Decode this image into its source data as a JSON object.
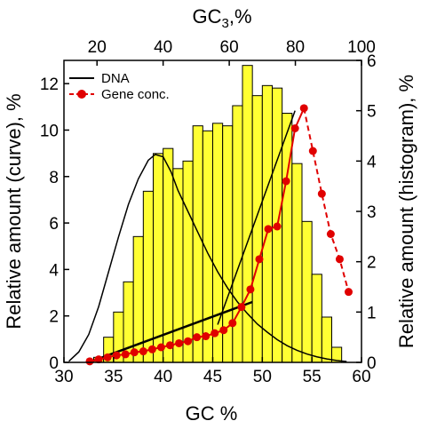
{
  "chart_data": {
    "type": "bar",
    "xlabel": "GC %",
    "xlim": [
      30,
      60
    ],
    "xticks": [
      30,
      35,
      40,
      45,
      50,
      55,
      60
    ],
    "top_axis": {
      "label_main": "GC",
      "label_sub": "3",
      "label_suffix": ",%",
      "lim": [
        10,
        100
      ],
      "ticks": [
        20,
        40,
        60,
        80,
        100
      ]
    },
    "ylabel_left": "Relative amount (curve), %",
    "ylim_left": [
      0,
      13
    ],
    "yticks_left": [
      0,
      2,
      4,
      6,
      8,
      10,
      12
    ],
    "ylabel_right": "Relative amount (histogram), %",
    "ylim_right": [
      0,
      6
    ],
    "yticks_right": [
      0,
      1,
      2,
      3,
      4,
      5,
      6
    ],
    "legend_position": "top-left",
    "histogram": {
      "axis": "right",
      "bin_width": 1,
      "color": "#ffff33",
      "bins": [
        {
          "x0": 33,
          "value": 0.1
        },
        {
          "x0": 34,
          "value": 0.5
        },
        {
          "x0": 35,
          "value": 1.0
        },
        {
          "x0": 36,
          "value": 1.6
        },
        {
          "x0": 37,
          "value": 2.5
        },
        {
          "x0": 38,
          "value": 3.4
        },
        {
          "x0": 39,
          "value": 4.15
        },
        {
          "x0": 40,
          "value": 4.25
        },
        {
          "x0": 41,
          "value": 3.85
        },
        {
          "x0": 42,
          "value": 4.0
        },
        {
          "x0": 43,
          "value": 4.7
        },
        {
          "x0": 44,
          "value": 4.6
        },
        {
          "x0": 45,
          "value": 4.75
        },
        {
          "x0": 46,
          "value": 4.7
        },
        {
          "x0": 47,
          "value": 5.1
        },
        {
          "x0": 48,
          "value": 5.9
        },
        {
          "x0": 49,
          "value": 5.3
        },
        {
          "x0": 50,
          "value": 5.5
        },
        {
          "x0": 51,
          "value": 5.45
        },
        {
          "x0": 52,
          "value": 4.95
        },
        {
          "x0": 53,
          "value": 3.95
        },
        {
          "x0": 54,
          "value": 2.8
        },
        {
          "x0": 55,
          "value": 1.75
        },
        {
          "x0": 56,
          "value": 0.9
        },
        {
          "x0": 57,
          "value": 0.3
        }
      ]
    },
    "series": [
      {
        "name": "DNA",
        "axis": "left",
        "style": "line",
        "color": "#000000",
        "x": [
          30.5,
          31.5,
          32.5,
          33.5,
          34.5,
          35.5,
          36.5,
          37.5,
          38.5,
          39.2,
          40.0,
          40.8,
          41.5,
          42.5,
          43.5,
          44.5,
          45.5,
          46.5,
          47.5,
          48.5,
          49.5,
          50.5,
          51.5,
          52.5,
          53.5,
          54.5,
          55.5,
          56.5,
          57.5,
          58.5
        ],
        "y": [
          0.05,
          0.45,
          1.2,
          2.4,
          3.9,
          5.4,
          6.8,
          7.9,
          8.7,
          8.95,
          8.85,
          8.2,
          7.4,
          6.5,
          5.6,
          4.7,
          3.9,
          3.2,
          2.6,
          2.1,
          1.65,
          1.3,
          0.98,
          0.72,
          0.52,
          0.36,
          0.24,
          0.15,
          0.08,
          0.04
        ]
      },
      {
        "name": "Gene conc.",
        "axis": "right",
        "style": "line-markers",
        "color": "#e00000",
        "x": [
          32.6,
          33.5,
          34.4,
          35.3,
          36.2,
          37.1,
          38.0,
          38.9,
          39.8,
          40.7,
          41.6,
          42.5,
          43.4,
          44.3,
          45.2,
          46.1,
          47.0,
          47.9,
          48.8,
          49.7,
          50.6,
          51.5,
          52.4,
          53.3,
          54.2,
          55.1,
          56.0,
          56.9,
          57.8,
          58.7
        ],
        "y": [
          0.02,
          0.06,
          0.1,
          0.14,
          0.16,
          0.2,
          0.22,
          0.26,
          0.3,
          0.34,
          0.38,
          0.42,
          0.5,
          0.52,
          0.58,
          0.64,
          0.78,
          1.1,
          1.45,
          2.05,
          2.65,
          2.7,
          3.6,
          4.65,
          5.05,
          4.2,
          3.35,
          2.55,
          2.05,
          1.4
        ]
      }
    ],
    "fit_lines": [
      {
        "axis": "right",
        "x": [
          32.5,
          49.0
        ],
        "y": [
          0.0,
          1.2
        ]
      },
      {
        "axis": "right",
        "x": [
          45.5,
          53.3
        ],
        "y": [
          0.75,
          5.0
        ]
      }
    ]
  }
}
